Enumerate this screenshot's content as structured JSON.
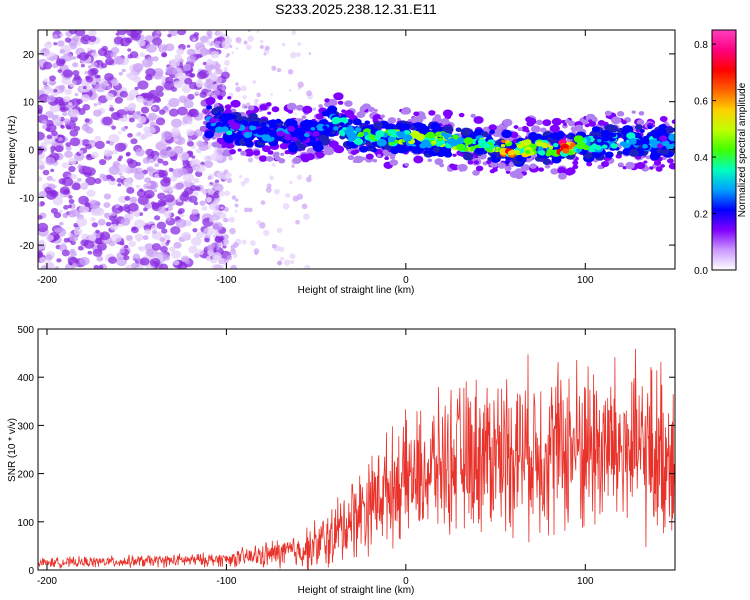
{
  "title": "S233.2025.238.12.31.E11",
  "chart_data": [
    {
      "type": "heatmap",
      "panel": "spectrogram",
      "xlabel": "Height of straight line (km)",
      "ylabel": "Frequency (Hz)",
      "xlim": [
        -205,
        150
      ],
      "ylim": [
        -25,
        25
      ],
      "xticks": [
        -200,
        -100,
        0,
        100
      ],
      "yticks": [
        -20,
        -10,
        0,
        10,
        20
      ],
      "colorbar": {
        "label": "Normalized spectral amplitude",
        "range": [
          0.0,
          0.85
        ],
        "ticks": [
          0.0,
          0.2,
          0.4,
          0.6,
          0.8
        ],
        "colors": [
          "#ffffff",
          "#cc99ff",
          "#8000ff",
          "#0000ff",
          "#00a0ff",
          "#00ffc0",
          "#40ff00",
          "#c0ff00",
          "#ffd000",
          "#ff6000",
          "#ff0000",
          "#ff0080",
          "#ff40c0"
        ]
      },
      "ridge": {
        "x": [
          -110,
          -100,
          -90,
          -80,
          -70,
          -60,
          -50,
          -40,
          -35,
          -30,
          -20,
          -10,
          0,
          10,
          20,
          30,
          40,
          50,
          60,
          70,
          80,
          90,
          100,
          110,
          120,
          130,
          140,
          150
        ],
        "freq": [
          6,
          5,
          4,
          4,
          3,
          3,
          3,
          6,
          5,
          3,
          3,
          2.5,
          2.5,
          2,
          2,
          1.5,
          1,
          1,
          0,
          0.5,
          0,
          0.5,
          1,
          1.5,
          2,
          2,
          1.5,
          2
        ],
        "peak_amplitude": [
          0.3,
          0.35,
          0.3,
          0.3,
          0.3,
          0.3,
          0.3,
          0.35,
          0.35,
          0.4,
          0.45,
          0.45,
          0.5,
          0.5,
          0.55,
          0.5,
          0.5,
          0.55,
          0.8,
          0.6,
          0.6,
          0.85,
          0.45,
          0.4,
          0.4,
          0.4,
          0.35,
          0.35
        ]
      },
      "noise_region_x": [
        -205,
        -110
      ]
    },
    {
      "type": "line",
      "panel": "snr",
      "xlabel": "Height of straight line (km)",
      "ylabel": "SNR (10 * v/v)",
      "xlim": [
        -205,
        150
      ],
      "ylim": [
        0,
        500
      ],
      "xticks": [
        -200,
        -100,
        0,
        100
      ],
      "yticks": [
        0,
        100,
        200,
        300,
        400,
        500
      ],
      "color": "#e8322a",
      "trend": {
        "x": [
          -205,
          -150,
          -100,
          -80,
          -60,
          -50,
          -40,
          -30,
          -20,
          -10,
          0,
          10,
          20,
          40,
          60,
          80,
          100,
          120,
          140,
          150
        ],
        "y": [
          15,
          18,
          22,
          30,
          40,
          50,
          70,
          110,
          140,
          170,
          190,
          200,
          220,
          240,
          250,
          250,
          260,
          250,
          240,
          250
        ]
      },
      "spread": {
        "x": [
          -205,
          -100,
          -60,
          -30,
          0,
          40,
          100,
          150
        ],
        "y": [
          8,
          12,
          30,
          70,
          100,
          130,
          150,
          150
        ]
      }
    }
  ]
}
